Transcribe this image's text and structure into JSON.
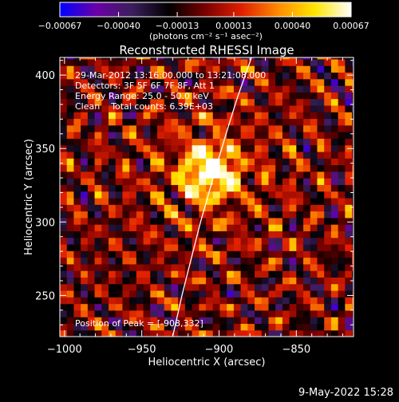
{
  "chart_data": {
    "type": "heatmap",
    "title": "Reconstructed RHESSI Image",
    "xlabel": "Heliocentric X (arcsec)",
    "ylabel": "Heliocentric Y (arcsec)",
    "xlim": [
      -1003,
      -813
    ],
    "ylim": [
      222,
      412
    ],
    "xticks": [
      -1000,
      -950,
      -900,
      -850
    ],
    "yticks": [
      250,
      300,
      350,
      400
    ],
    "x_tick_labels": [
      "−1000",
      "−950",
      "−900",
      "−850"
    ],
    "y_tick_labels": [
      "250",
      "300",
      "350",
      "400"
    ],
    "colorbar": {
      "min": -0.00067,
      "max": 0.00067,
      "ticks": [
        -0.00067,
        -0.0004,
        -0.00013,
        0.00013,
        0.0004,
        0.00067
      ],
      "tick_labels": [
        "−0.00067",
        "−0.00040",
        "−0.00013",
        "0.00013",
        "0.00040",
        "0.00067"
      ],
      "unit_label": "(photons cm⁻² s⁻¹ asec⁻²)",
      "colors": [
        "#0000ff",
        "#6a00a8",
        "#3a1f5a",
        "#000000",
        "#7a0000",
        "#e02000",
        "#ff8a00",
        "#ffe600",
        "#ffffff"
      ]
    },
    "annotations": [
      "29-Mar-2012 13:16:00.000 to 13:21:08.000",
      "Detectors: 3F 5F 6F 7F 8F, Att 1",
      "Energy Range: 25.0 - 50.0 keV",
      "Clean    Total counts: 6.39E+03"
    ],
    "peak_label": "Position of Peak = [-908,332]",
    "peak": {
      "x": -908,
      "y": 332
    },
    "limb_curve": {
      "x": [
        -930,
        -924,
        -918,
        -912,
        -906,
        -900,
        -894,
        -888,
        -883,
        -879
      ],
      "y": [
        222,
        250,
        275,
        300,
        322,
        344,
        365,
        385,
        400,
        412
      ]
    },
    "grid": false
  },
  "footer": {
    "timestamp": "9-May-2022 15:28"
  }
}
